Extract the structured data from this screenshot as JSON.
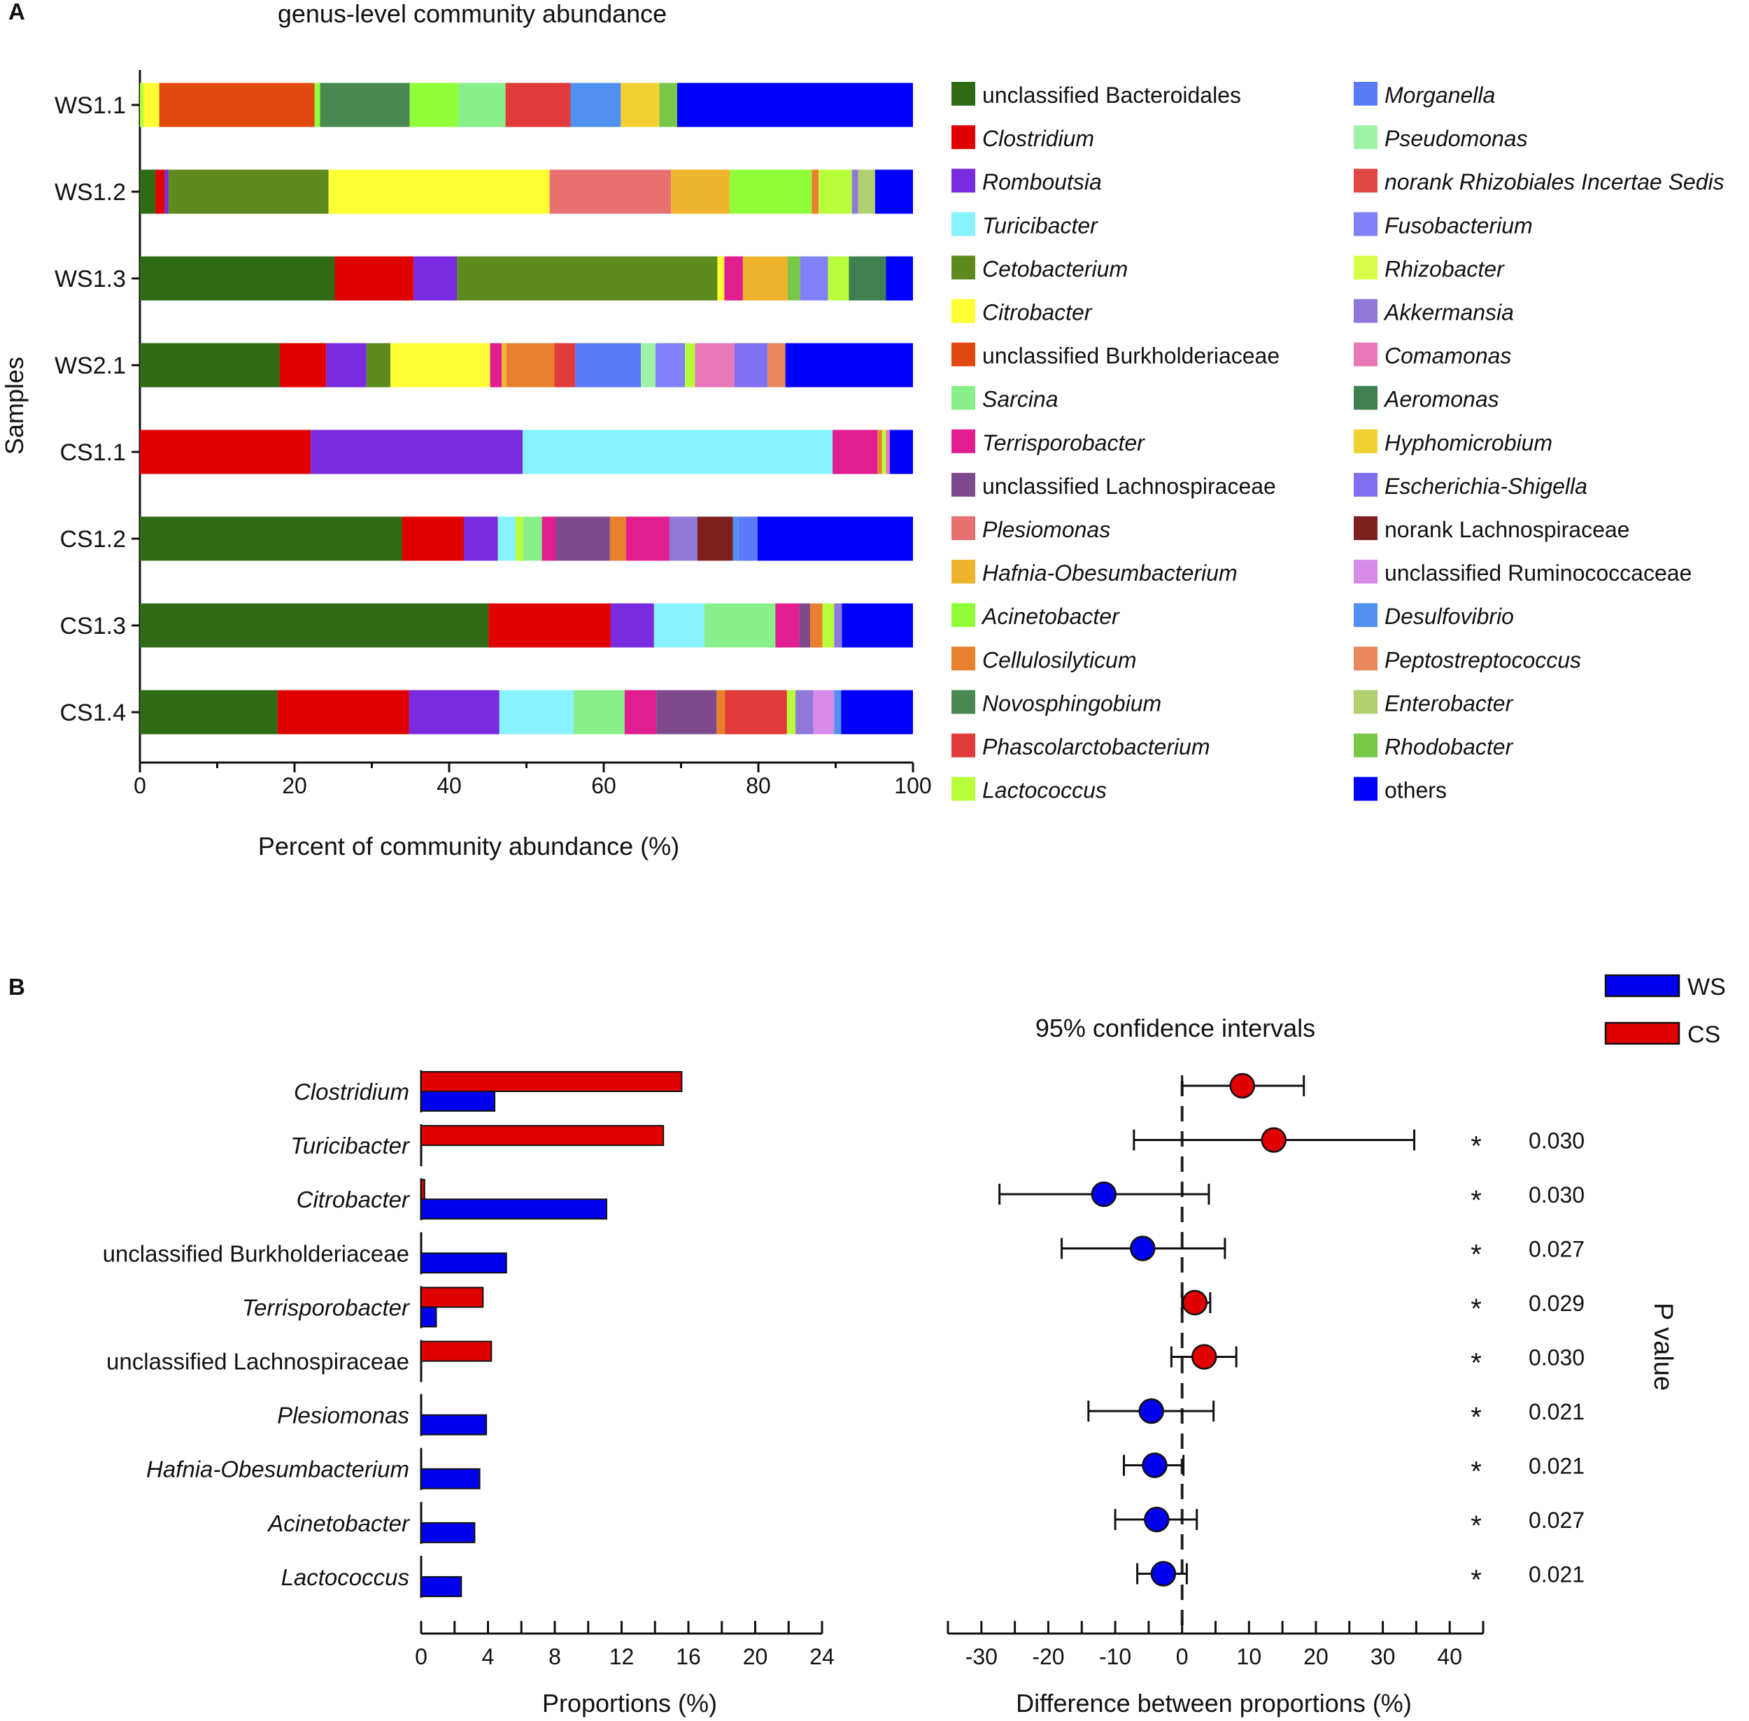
{
  "chart_data": [
    {
      "panel_label": "A",
      "type": "stacked-bar-horizontal",
      "title": "genus-level community abundance",
      "xlabel": "Percent of community abundance (%)",
      "ylabel": "Samples",
      "xlim": [
        0,
        100
      ],
      "xticks": [
        "0",
        "20",
        "40",
        "60",
        "80",
        "100"
      ],
      "samples": [
        "WS1.1",
        "WS1.2",
        "WS1.3",
        "WS2.1",
        "CS1.1",
        "CS1.2",
        "CS1.3",
        "CS1.4"
      ],
      "legend": [
        {
          "name": "unclassified Bacteroidales",
          "color": "#2f6a14",
          "italic": false
        },
        {
          "name": "Clostridium",
          "color": "#e00000",
          "italic": true
        },
        {
          "name": "Romboutsia",
          "color": "#7a2be0",
          "italic": true
        },
        {
          "name": "Turicibacter",
          "color": "#88f2ff",
          "italic": true,
          "text_color": "#555555"
        },
        {
          "name": "Cetobacterium",
          "color": "#5f8a1e",
          "italic": true
        },
        {
          "name": "Citrobacter",
          "color": "#ffff33",
          "italic": true
        },
        {
          "name": "unclassified Burkholderiaceae",
          "color": "#e04a0e",
          "italic": false
        },
        {
          "name": "Sarcina",
          "color": "#88f08a",
          "italic": true
        },
        {
          "name": "Terrisporobacter",
          "color": "#e01e90",
          "italic": true
        },
        {
          "name": "unclassified Lachnospiraceae",
          "color": "#7e4a8e",
          "italic": false
        },
        {
          "name": "Plesiomonas",
          "color": "#e87070",
          "italic": true
        },
        {
          "name": "Hafnia-Obesumbacterium",
          "color": "#eeb42e",
          "italic": true
        },
        {
          "name": "Acinetobacter",
          "color": "#90ff3a",
          "italic": true
        },
        {
          "name": "Cellulosilyticum",
          "color": "#e8802e",
          "italic": true
        },
        {
          "name": "Novosphingobium",
          "color": "#4a8a52",
          "italic": true
        },
        {
          "name": "Phascolarctobacterium",
          "color": "#e03a3a",
          "italic": true
        },
        {
          "name": "Lactococcus",
          "color": "#b8ff3a",
          "italic": true
        },
        {
          "name": "Morganella",
          "color": "#5a7af8",
          "italic": true
        },
        {
          "name": "Pseudomonas",
          "color": "#9ef2a6",
          "italic": true
        },
        {
          "name": "norank Rhizobiales Incertae Sedis",
          "color": "#e04848",
          "italic": true
        },
        {
          "name": "Fusobacterium",
          "color": "#8080f8",
          "italic": true
        },
        {
          "name": "Rhizobacter",
          "color": "#d8ff48",
          "italic": true
        },
        {
          "name": "Akkermansia",
          "color": "#9078d8",
          "italic": true
        },
        {
          "name": "Comamonas",
          "color": "#e878b8",
          "italic": true
        },
        {
          "name": "Aeromonas",
          "color": "#3e8050",
          "italic": true
        },
        {
          "name": "Hyphomicrobium",
          "color": "#f2d030",
          "italic": true
        },
        {
          "name": "Escherichia-Shigella",
          "color": "#8070f0",
          "italic": true
        },
        {
          "name": "norank Lachnospiraceae",
          "color": "#7e2020",
          "italic": false
        },
        {
          "name": "unclassified Ruminococcaceae",
          "color": "#d88ae8",
          "italic": false
        },
        {
          "name": "Desulfovibrio",
          "color": "#5090f0",
          "italic": true
        },
        {
          "name": "Peptostreptococcus",
          "color": "#e8885a",
          "italic": true
        },
        {
          "name": "Enterobacter",
          "color": "#b0d070",
          "italic": true
        },
        {
          "name": "Rhodobacter",
          "color": "#78c848",
          "italic": true
        },
        {
          "name": "others",
          "color": "#0000ff",
          "italic": false
        }
      ],
      "segments": {
        "WS1.1": [
          [
            "Lactococcus",
            0.5
          ],
          [
            "Citrobacter",
            2.0
          ],
          [
            "unclassified Burkholderiaceae",
            20.1
          ],
          [
            "Acinetobacter",
            0.7
          ],
          [
            "Novosphingobium",
            11.6
          ],
          [
            "Acinetobacter",
            6.3
          ],
          [
            "Sarcina",
            6.1
          ],
          [
            "Phascolarctobacterium",
            8.4
          ],
          [
            "Desulfovibrio",
            6.5
          ],
          [
            "Hyphomicrobium",
            5.0
          ],
          [
            "Rhodobacter",
            2.3
          ],
          [
            "others",
            30.5
          ]
        ],
        "WS1.2": [
          [
            "unclassified Bacteroidales",
            2.0
          ],
          [
            "Clostridium",
            1.2
          ],
          [
            "Romboutsia",
            0.5
          ],
          [
            "Cetobacterium",
            20.7
          ],
          [
            "Citrobacter",
            28.6
          ],
          [
            "Plesiomonas",
            15.7
          ],
          [
            "Hafnia-Obesumbacterium",
            7.6
          ],
          [
            "Acinetobacter",
            10.6
          ],
          [
            "Cellulosilyticum",
            0.9
          ],
          [
            "Lactococcus",
            4.3
          ],
          [
            "Akkermansia",
            0.8
          ],
          [
            "Enterobacter",
            2.2
          ],
          [
            "others",
            4.9
          ]
        ],
        "WS1.3": [
          [
            "unclassified Bacteroidales",
            25.2
          ],
          [
            "Clostridium",
            10.2
          ],
          [
            "Romboutsia",
            5.6
          ],
          [
            "Cetobacterium",
            33.7
          ],
          [
            "Citrobacter",
            0.9
          ],
          [
            "Terrisporobacter",
            2.4
          ],
          [
            "Hafnia-Obesumbacterium",
            5.8
          ],
          [
            "Rhodobacter",
            1.6
          ],
          [
            "Fusobacterium",
            3.6
          ],
          [
            "Lactococcus",
            2.7
          ],
          [
            "Aeromonas",
            4.8
          ],
          [
            "others",
            3.5
          ]
        ],
        "WS2.1": [
          [
            "unclassified Bacteroidales",
            18.1
          ],
          [
            "Clostridium",
            6.0
          ],
          [
            "Romboutsia",
            5.2
          ],
          [
            "Cetobacterium",
            3.1
          ],
          [
            "Citrobacter",
            12.9
          ],
          [
            "Terrisporobacter",
            1.5
          ],
          [
            "Hafnia-Obesumbacterium",
            0.6
          ],
          [
            "Cellulosilyticum",
            6.2
          ],
          [
            "Phascolarctobacterium",
            2.7
          ],
          [
            "Morganella",
            8.5
          ],
          [
            "Pseudomonas",
            1.9
          ],
          [
            "Fusobacterium",
            3.8
          ],
          [
            "Lactococcus",
            1.3
          ],
          [
            "Comamonas",
            5.1
          ],
          [
            "Escherichia-Shigella",
            4.3
          ],
          [
            "Peptostreptococcus",
            2.3
          ],
          [
            "others",
            16.5
          ]
        ],
        "CS1.1": [
          [
            "Clostridium",
            22.1
          ],
          [
            "Romboutsia",
            27.4
          ],
          [
            "Turicibacter",
            40.1
          ],
          [
            "Terrisporobacter",
            5.8
          ],
          [
            "Cellulosilyticum",
            0.6
          ],
          [
            "Lactococcus",
            0.5
          ],
          [
            "Comamonas",
            0.5
          ],
          [
            "others",
            3.0
          ]
        ],
        "CS1.2": [
          [
            "unclassified Bacteroidales",
            33.9
          ],
          [
            "Clostridium",
            8.0
          ],
          [
            "Romboutsia",
            4.4
          ],
          [
            "Turicibacter",
            2.3
          ],
          [
            "Lactococcus",
            1.0
          ],
          [
            "Sarcina",
            2.4
          ],
          [
            "Terrisporobacter",
            1.8
          ],
          [
            "unclassified Lachnospiraceae",
            7.0
          ],
          [
            "Cellulosilyticum",
            2.1
          ],
          [
            "Terrisporobacter",
            5.6
          ],
          [
            "Akkermansia",
            3.6
          ],
          [
            "norank Lachnospiraceae",
            4.6
          ],
          [
            "Desulfovibrio",
            0.7
          ],
          [
            "Morganella",
            2.5
          ],
          [
            "others",
            20.1
          ]
        ],
        "CS1.3": [
          [
            "unclassified Bacteroidales",
            45.1
          ],
          [
            "Clostridium",
            15.8
          ],
          [
            "Romboutsia",
            5.6
          ],
          [
            "Turicibacter",
            6.5
          ],
          [
            "Sarcina",
            9.2
          ],
          [
            "Terrisporobacter",
            3.1
          ],
          [
            "unclassified Lachnospiraceae",
            1.4
          ],
          [
            "Cellulosilyticum",
            1.6
          ],
          [
            "Lactococcus",
            1.5
          ],
          [
            "Akkermansia",
            1.0
          ],
          [
            "others",
            9.2
          ]
        ],
        "CS1.4": [
          [
            "unclassified Bacteroidales",
            17.8
          ],
          [
            "Clostridium",
            17.0
          ],
          [
            "Romboutsia",
            11.7
          ],
          [
            "Turicibacter",
            9.6
          ],
          [
            "Sarcina",
            6.6
          ],
          [
            "Terrisporobacter",
            4.1
          ],
          [
            "unclassified Lachnospiraceae",
            7.8
          ],
          [
            "Cellulosilyticum",
            1.1
          ],
          [
            "Phascolarctobacterium",
            8.0
          ],
          [
            "Lactococcus",
            1.1
          ],
          [
            "Akkermansia",
            2.3
          ],
          [
            "unclassified Ruminococcaceae",
            2.7
          ],
          [
            "Desulfovibrio",
            0.9
          ],
          [
            "others",
            9.3
          ]
        ]
      }
    },
    {
      "panel_label": "B",
      "type": "bar",
      "orientation": "horizontal",
      "xlabel": "Proportions (%)",
      "xlim": [
        0,
        24
      ],
      "xticks": [
        "0",
        "4",
        "8",
        "12",
        "16",
        "20",
        "24"
      ],
      "categories": [
        "Clostridium",
        "Turicibacter",
        "Citrobacter",
        "unclassified Burkholderiaceae",
        "Terrisporobacter",
        "unclassified Lachnospiraceae",
        "Plesiomonas",
        "Hafnia-Obesumbacterium",
        "Acinetobacter",
        "Lactococcus"
      ],
      "category_italic": [
        true,
        true,
        true,
        false,
        true,
        false,
        true,
        true,
        true,
        true
      ],
      "series": [
        {
          "name": "CS",
          "color": "#e00000",
          "values": [
            15.6,
            14.5,
            0.2,
            0,
            3.7,
            4.2,
            0,
            0,
            0,
            0
          ]
        },
        {
          "name": "WS",
          "color": "#0000ee",
          "values": [
            4.4,
            0,
            11.1,
            5.1,
            0.9,
            0,
            3.9,
            3.5,
            3.2,
            2.4
          ]
        }
      ]
    },
    {
      "panel_label": "",
      "type": "scatter",
      "title": "95% confidence intervals",
      "xlabel": "Difference between proportions (%)",
      "xlim": [
        -35,
        45
      ],
      "xticks": [
        "-30",
        "-20",
        "-10",
        "0",
        "10",
        "20",
        "30",
        "40"
      ],
      "ylabel_right": "P value",
      "categories": [
        "Clostridium",
        "Turicibacter",
        "Citrobacter",
        "unclassified Burkholderiaceae",
        "Terrisporobacter",
        "unclassified Lachnospiraceae",
        "Plesiomonas",
        "Hafnia-Obesumbacterium",
        "Acinetobacter",
        "Lactococcus"
      ],
      "effect": [
        9.0,
        13.7,
        -11.7,
        -5.9,
        1.9,
        3.3,
        -4.6,
        -4.1,
        -3.8,
        -2.8
      ],
      "ci_low": [
        0.0,
        -7.2,
        -27.3,
        -18.0,
        0.0,
        -1.6,
        -14.0,
        -8.7,
        -10.0,
        -6.7
      ],
      "ci_high": [
        18.2,
        34.7,
        4.0,
        6.4,
        4.2,
        8.1,
        4.7,
        0.2,
        2.2,
        0.7
      ],
      "group": [
        "CS",
        "CS",
        "WS",
        "WS",
        "CS",
        "CS",
        "WS",
        "WS",
        "WS",
        "WS"
      ],
      "significance": [
        "",
        "*",
        "*",
        "*",
        "*",
        "*",
        "*",
        "*",
        "*",
        "*"
      ],
      "p_values": [
        "",
        "0.030",
        "0.030",
        "0.027",
        "0.029",
        "0.030",
        "0.021",
        "0.021",
        "0.027",
        "0.021"
      ],
      "legend": [
        {
          "name": "WS",
          "color": "#0000ee"
        },
        {
          "name": "CS",
          "color": "#e00000"
        }
      ]
    }
  ]
}
